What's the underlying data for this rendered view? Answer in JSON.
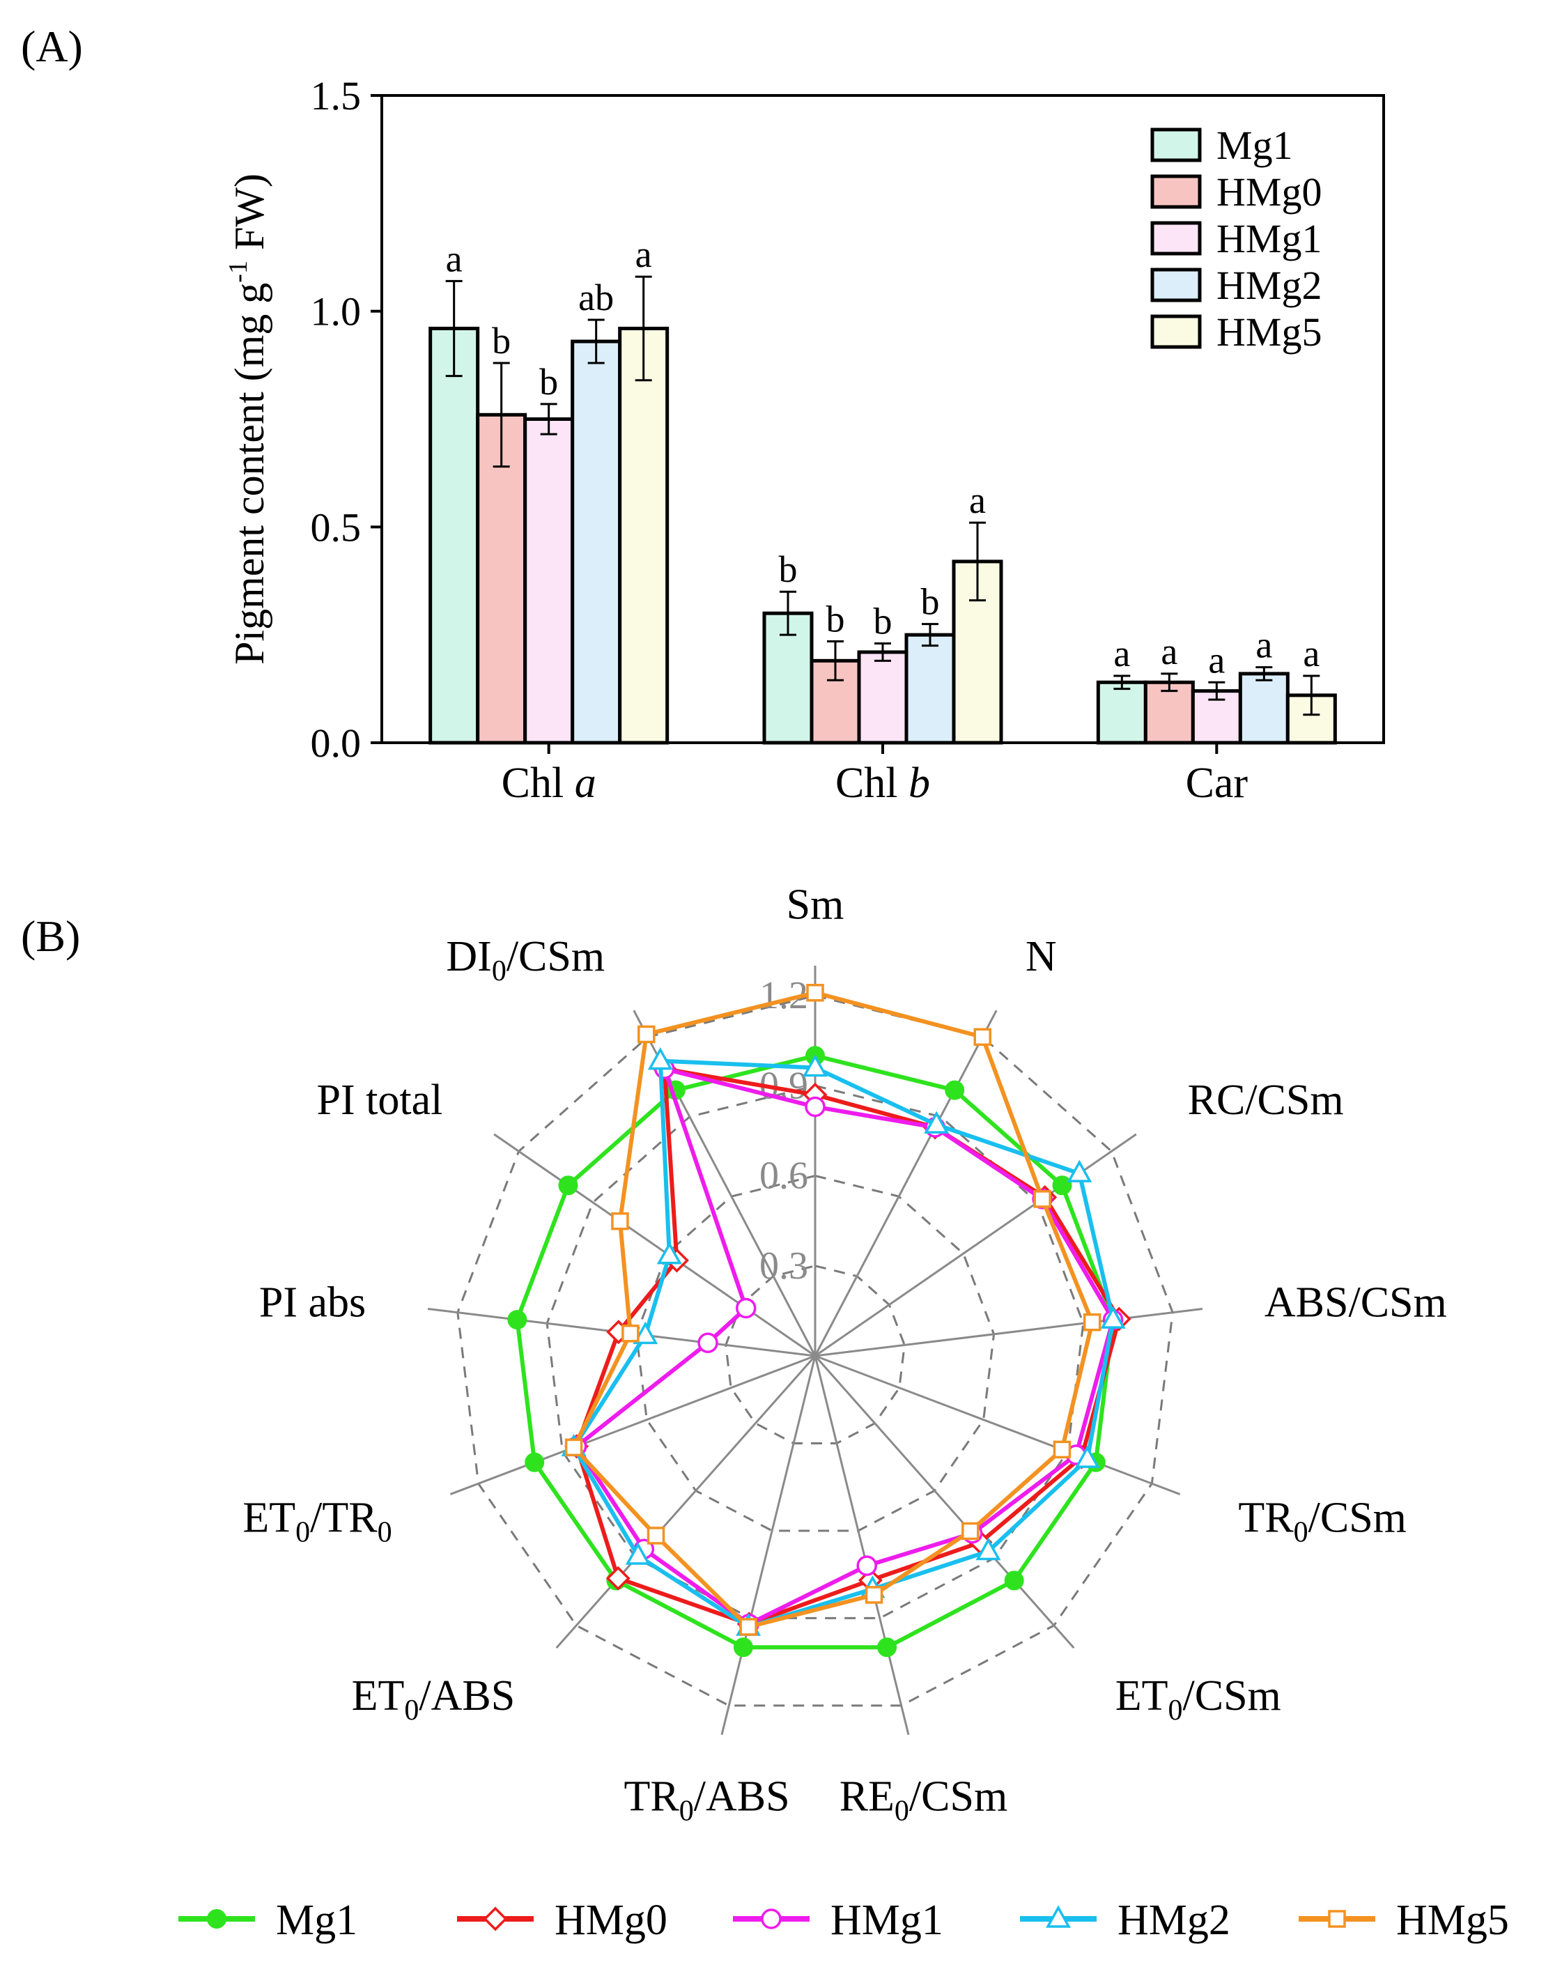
{
  "figure": {
    "panel_a_label": "(A)",
    "panel_b_label": "(B)"
  },
  "colors": {
    "bar_fill": [
      "#d2f5e9",
      "#f8c4c1",
      "#fbe5f7",
      "#dbeef9",
      "#fbfbe4"
    ],
    "line": [
      "#2ee31e",
      "#ed1c1c",
      "#ee1cec",
      "#19bfee",
      "#f39221"
    ]
  },
  "chart_data": [
    {
      "type": "bar",
      "ylabel": "Pigment content (mg g",
      "ylabel_sup": "-1",
      "ylabel_tail": " FW)",
      "ylim": [
        0,
        1.5
      ],
      "yticks": [
        0.0,
        0.5,
        1.0,
        1.5
      ],
      "ytick_labels": [
        "0.0",
        "0.5",
        "1.0",
        "1.5"
      ],
      "categories": [
        {
          "text": "Chl ",
          "italic": "a"
        },
        {
          "text": "Chl ",
          "italic": "b"
        },
        {
          "text": "Car",
          "italic": ""
        }
      ],
      "legend": [
        "Mg1",
        "HMg0",
        "HMg1",
        "HMg2",
        "HMg5"
      ],
      "series": [
        {
          "name": "Mg1",
          "values": [
            0.96,
            0.3,
            0.14
          ],
          "errors": [
            0.11,
            0.05,
            0.015
          ],
          "letters": [
            "a",
            "b",
            "a"
          ]
        },
        {
          "name": "HMg0",
          "values": [
            0.76,
            0.19,
            0.14
          ],
          "errors": [
            0.12,
            0.045,
            0.02
          ],
          "letters": [
            "b",
            "b",
            "a"
          ]
        },
        {
          "name": "HMg1",
          "values": [
            0.75,
            0.21,
            0.12
          ],
          "errors": [
            0.035,
            0.02,
            0.02
          ],
          "letters": [
            "b",
            "b",
            "a"
          ]
        },
        {
          "name": "HMg2",
          "values": [
            0.93,
            0.25,
            0.16
          ],
          "errors": [
            0.05,
            0.025,
            0.015
          ],
          "letters": [
            "ab",
            "b",
            "a"
          ]
        },
        {
          "name": "HMg5",
          "values": [
            0.96,
            0.42,
            0.11
          ],
          "errors": [
            0.12,
            0.09,
            0.045
          ],
          "letters": [
            "a",
            "a",
            "a"
          ]
        }
      ]
    },
    {
      "type": "radar",
      "rmax": 1.3,
      "rings": [
        0.3,
        0.6,
        0.9,
        1.2
      ],
      "ring_labels": [
        "0.3",
        "0.6",
        "0.9",
        "1.2"
      ],
      "axes": [
        {
          "base": "Sm",
          "sub": "",
          "tail": ""
        },
        {
          "base": "N",
          "sub": "",
          "tail": ""
        },
        {
          "base": "RC/CSm",
          "sub": "",
          "tail": ""
        },
        {
          "base": "ABS/CSm",
          "sub": "",
          "tail": ""
        },
        {
          "base": "TR",
          "sub": "0",
          "tail": "/CSm"
        },
        {
          "base": "ET",
          "sub": "0",
          "tail": "/CSm"
        },
        {
          "base": "RE",
          "sub": "0",
          "tail": "/CSm"
        },
        {
          "base": "TR",
          "sub": "0",
          "tail": "/ABS"
        },
        {
          "base": "ET",
          "sub": "0",
          "tail": "/ABS"
        },
        {
          "base": "ET",
          "sub": "0",
          "tail": "/TR0"
        },
        {
          "base": "PI abs",
          "sub": "",
          "tail": ""
        },
        {
          "base": "PI total",
          "sub": "",
          "tail": ""
        },
        {
          "base": "DI",
          "sub": "0",
          "tail": "/CSm"
        }
      ],
      "legend": [
        "Mg1",
        "HMg0",
        "HMg1",
        "HMg2",
        "HMg5"
      ],
      "series": [
        {
          "name": "Mg1",
          "marker": "circle-filled",
          "values": [
            1.0,
            1.0,
            1.0,
            1.0,
            1.0,
            1.0,
            1.0,
            1.0,
            1.0,
            1.0,
            1.0,
            1.0,
            1.0
          ]
        },
        {
          "name": "HMg0",
          "marker": "diamond-open",
          "values": [
            0.87,
            0.86,
            0.93,
            1.02,
            0.95,
            0.83,
            0.77,
            0.92,
            0.99,
            0.85,
            0.66,
            0.56,
            1.08
          ]
        },
        {
          "name": "HMg1",
          "marker": "circle-open",
          "values": [
            0.83,
            0.86,
            0.92,
            1.0,
            0.93,
            0.79,
            0.72,
            0.92,
            0.86,
            0.85,
            0.36,
            0.28,
            1.08
          ]
        },
        {
          "name": "HMg2",
          "marker": "triangle-open",
          "values": [
            0.96,
            0.87,
            1.07,
            1.0,
            0.97,
            0.87,
            0.8,
            0.93,
            0.89,
            0.86,
            0.57,
            0.59,
            1.11
          ]
        },
        {
          "name": "HMg5",
          "marker": "square-open",
          "values": [
            1.21,
            1.2,
            0.92,
            0.93,
            0.88,
            0.78,
            0.82,
            0.93,
            0.8,
            0.86,
            0.62,
            0.79,
            1.21
          ]
        }
      ]
    }
  ]
}
